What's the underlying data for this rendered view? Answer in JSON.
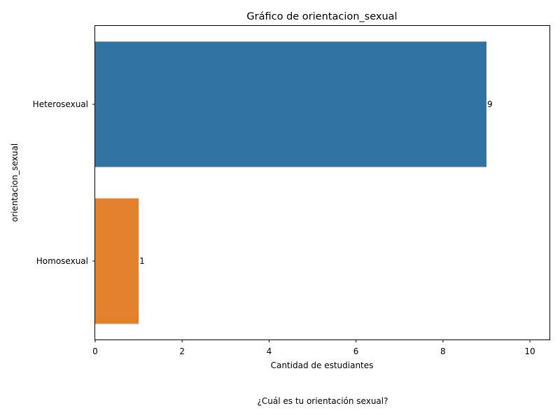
{
  "chart_data": {
    "type": "bar",
    "orientation": "horizontal",
    "title": "Gráfico de orientacion_sexual",
    "xlabel": "Cantidad de estudiantes",
    "ylabel": "orientacion_sexual",
    "categories": [
      "Heterosexual",
      "Homosexual"
    ],
    "values": [
      9,
      1
    ],
    "bar_labels": [
      "9",
      "1"
    ],
    "colors": [
      "#3274a1",
      "#e1812c"
    ],
    "xlim": [
      0,
      10.45
    ],
    "xticks": [
      0,
      2,
      4,
      6,
      8,
      10
    ],
    "grid": false,
    "legend": "none"
  },
  "caption": "¿Cuál es tu orientación sexual?"
}
